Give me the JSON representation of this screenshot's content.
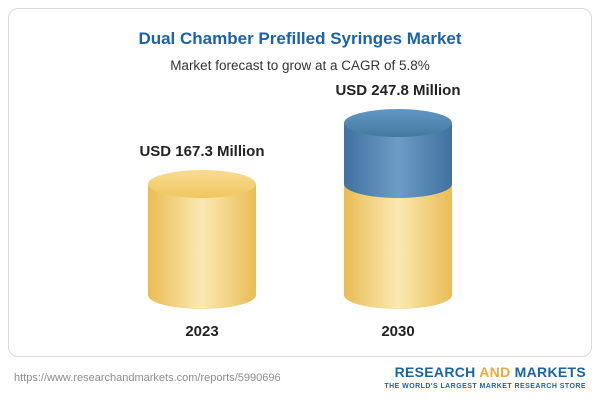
{
  "chart_data": {
    "type": "bar",
    "style": "3d-cylinder",
    "title": "Dual Chamber Prefilled Syringes Market",
    "subtitle": "Market forecast to grow at a CAGR of 5.8%",
    "categories": [
      "2023",
      "2030"
    ],
    "values": [
      167.3,
      247.8
    ],
    "value_labels": [
      "USD 167.3 Million",
      "USD 247.8 Million"
    ],
    "unit": "USD Million",
    "cagr_percent": 5.8,
    "ylim": [
      0,
      260
    ],
    "grid": false,
    "legend": "none",
    "colors": {
      "base_segment": "#F6D27F",
      "growth_segment": "#4A80B4",
      "title_text": "#1B63A8",
      "label_text": "#222222"
    }
  },
  "footer": {
    "url": "https://www.researchandmarkets.com/reports/5990696",
    "logo": {
      "research": "RESEARCH ",
      "and": "AND ",
      "markets": "MARKETS",
      "tagline": "THE WORLD'S LARGEST MARKET RESEARCH STORE"
    }
  }
}
